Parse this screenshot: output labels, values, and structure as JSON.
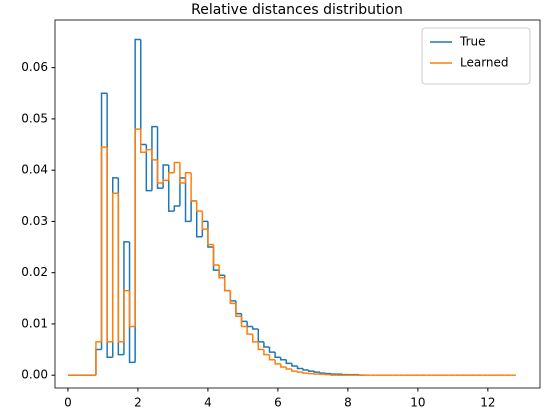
{
  "chart_data": {
    "type": "histogram",
    "histtype": "step",
    "title": "Relative distances distribution",
    "series": [
      {
        "name": "True",
        "color": "#1f77b4",
        "bins": [
          0,
          0.16,
          0.32,
          0.48,
          0.64,
          0.8,
          0.96,
          1.12,
          1.28,
          1.44,
          1.6,
          1.76,
          1.92,
          2.08,
          2.24,
          2.4,
          2.56,
          2.72,
          2.88,
          3.04,
          3.2,
          3.36,
          3.52,
          3.68,
          3.84,
          4,
          4.16,
          4.32,
          4.48,
          4.64,
          4.8,
          4.96,
          5.12,
          5.28,
          5.44,
          5.6,
          5.76,
          5.92,
          6.08,
          6.24,
          6.4,
          6.56,
          6.72,
          6.88,
          7.04,
          7.2,
          7.36,
          7.52,
          7.68,
          7.84,
          8,
          8.16,
          8.32,
          8.48
        ],
        "values": [
          0,
          0,
          0,
          0,
          0,
          0.005,
          0.055,
          0.0035,
          0.0385,
          0.004,
          0.026,
          0.0025,
          0.0655,
          0.045,
          0.036,
          0.0485,
          0.0365,
          0.041,
          0.032,
          0.033,
          0.0385,
          0.03,
          0.034,
          0.027,
          0.03,
          0.025,
          0.0205,
          0.0195,
          0.0165,
          0.0145,
          0.012,
          0.0105,
          0.0095,
          0.009,
          0.0065,
          0.0055,
          0.0045,
          0.0035,
          0.003,
          0.0023,
          0.0018,
          0.0013,
          0.001,
          0.0008,
          0.0006,
          0.0004,
          0.0003,
          0.0002,
          0.0002,
          0.0001,
          0.0001,
          0.0001,
          0
        ]
      },
      {
        "name": "Learned",
        "color": "#ff7f0e",
        "bins": [
          0,
          0.16,
          0.32,
          0.48,
          0.64,
          0.8,
          0.96,
          1.12,
          1.28,
          1.44,
          1.6,
          1.76,
          1.92,
          2.08,
          2.24,
          2.4,
          2.56,
          2.72,
          2.88,
          3.04,
          3.2,
          3.36,
          3.52,
          3.68,
          3.84,
          4,
          4.16,
          4.32,
          4.48,
          4.64,
          4.8,
          4.96,
          5.12,
          5.28,
          5.44,
          5.6,
          5.76,
          5.92,
          6.08,
          6.24,
          6.4,
          6.56,
          6.72,
          6.88,
          7.04,
          7.2,
          7.36,
          7.52,
          7.68,
          7.84,
          8,
          8.16,
          8.32,
          8.48,
          8.64,
          8.8,
          8.96,
          9.12,
          9.28,
          9.44,
          9.6,
          9.76,
          9.92,
          10.08,
          10.24,
          10.4,
          10.56,
          10.72,
          10.88,
          11.04,
          11.2,
          11.36,
          11.52,
          11.68,
          11.84,
          12,
          12.16,
          12.32,
          12.48,
          12.64,
          12.8
        ],
        "values": [
          0,
          0,
          0,
          0,
          0,
          0.0065,
          0.0445,
          0.0065,
          0.0355,
          0.0065,
          0.0165,
          0.0095,
          0.048,
          0.0435,
          0.044,
          0.042,
          0.0375,
          0.038,
          0.0395,
          0.0415,
          0.0375,
          0.0395,
          0.034,
          0.032,
          0.0285,
          0.0255,
          0.0215,
          0.019,
          0.0165,
          0.014,
          0.0115,
          0.0095,
          0.008,
          0.0065,
          0.005,
          0.004,
          0.003,
          0.0022,
          0.0016,
          0.0012,
          0.0008,
          0.0006,
          0.0004,
          0.0003,
          0.0002,
          0.0002,
          0.0001,
          0,
          0,
          0,
          0,
          0,
          0,
          0,
          0,
          0,
          0,
          0,
          0,
          0,
          0,
          0,
          0,
          0,
          0,
          0,
          0,
          0,
          0,
          0,
          0,
          0,
          0,
          0,
          0,
          0,
          0,
          0,
          0,
          0
        ]
      }
    ],
    "xlim": [
      -0.37,
      13.49
    ],
    "ylim": [
      -0.0025,
      0.0693
    ],
    "xticks": [
      0,
      2,
      4,
      6,
      8,
      10,
      12
    ],
    "yticks": [
      {
        "value": 0,
        "label": "0.00"
      },
      {
        "value": 0.01,
        "label": "0.01"
      },
      {
        "value": 0.02,
        "label": "0.02"
      },
      {
        "value": 0.03,
        "label": "0.03"
      },
      {
        "value": 0.04,
        "label": "0.04"
      },
      {
        "value": 0.05,
        "label": "0.05"
      },
      {
        "value": 0.06,
        "label": "0.06"
      }
    ],
    "legend": "upper right",
    "grid": false
  }
}
